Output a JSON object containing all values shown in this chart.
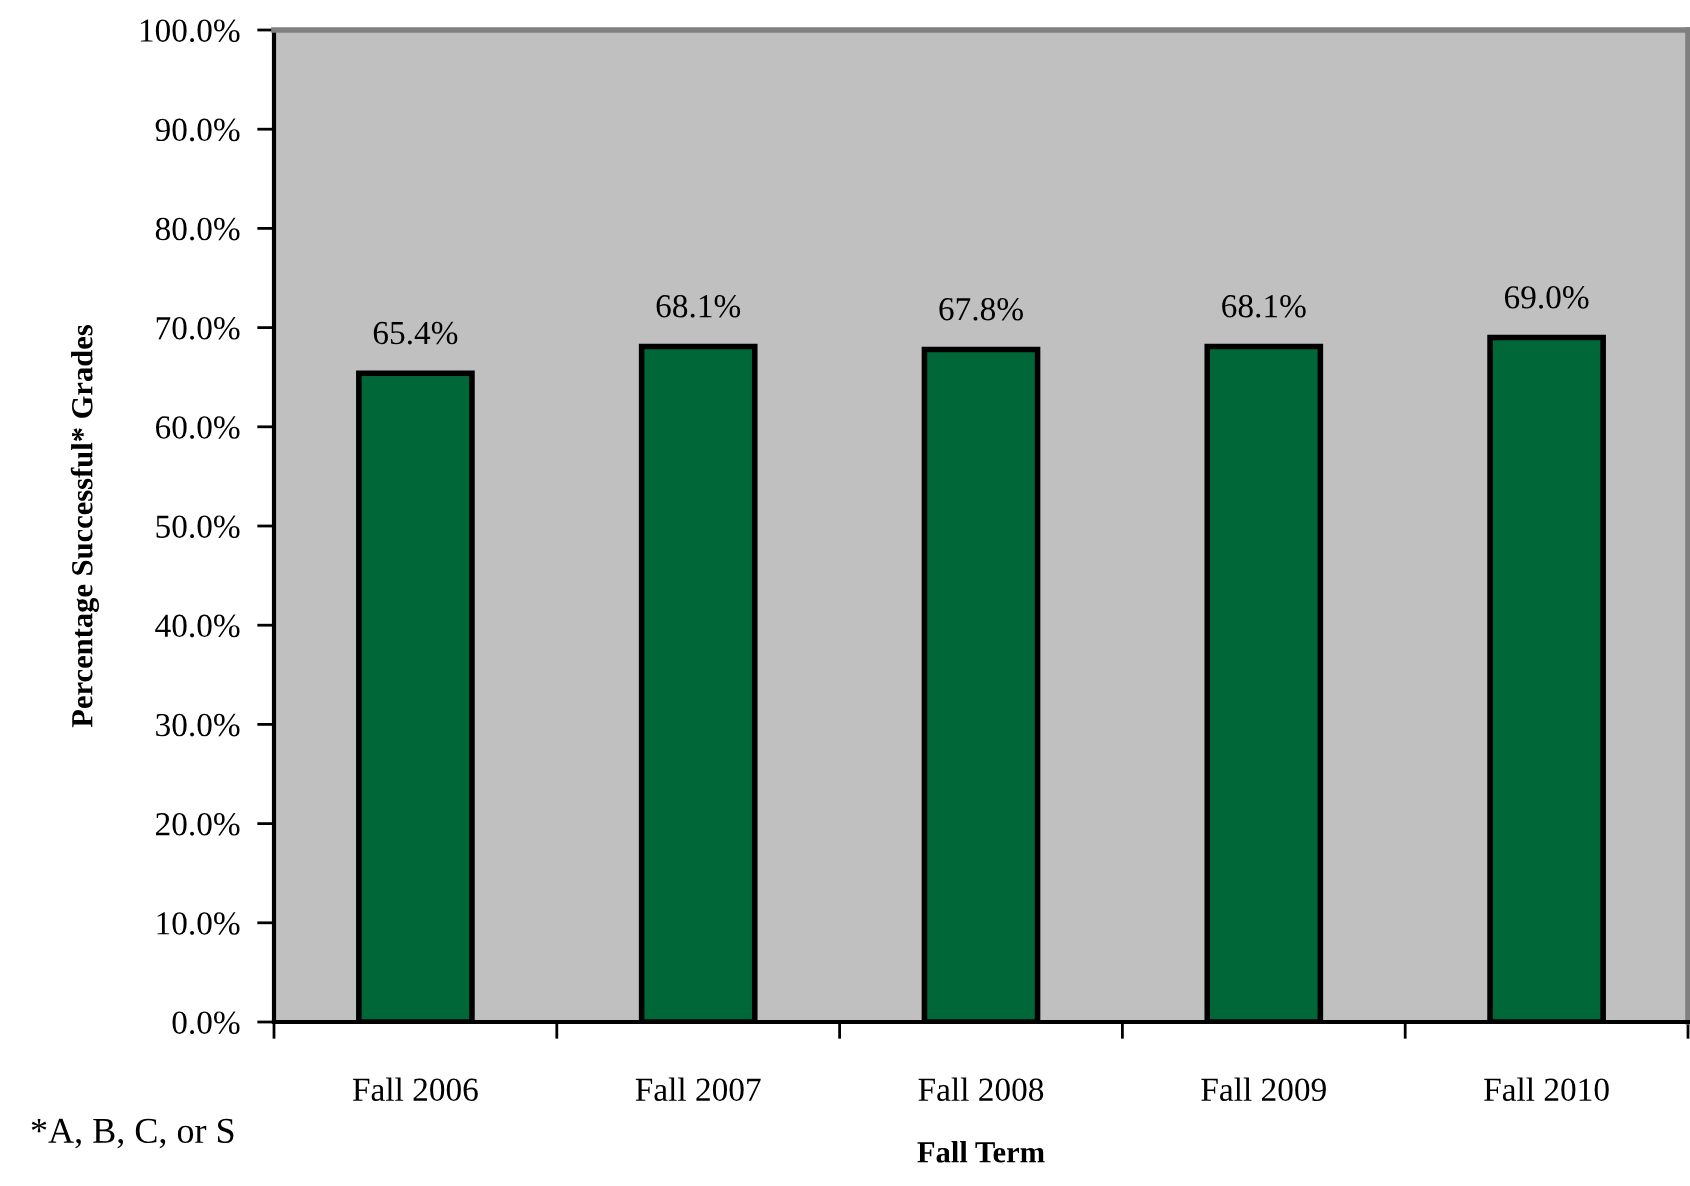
{
  "chart_data": {
    "type": "bar",
    "categories": [
      "Fall 2006",
      "Fall 2007",
      "Fall 2008",
      "Fall 2009",
      "Fall 2010"
    ],
    "values": [
      65.4,
      68.1,
      67.8,
      68.1,
      69.0
    ],
    "value_labels": [
      "65.4%",
      "68.1%",
      "67.8%",
      "68.1%",
      "69.0%"
    ],
    "color": "#006838",
    "xlabel": "Fall Term",
    "ylabel": "Percentage Successful* Grades",
    "ylim": [
      0,
      100
    ],
    "yticks": [
      {
        "value": 0,
        "label": "0.0%"
      },
      {
        "value": 10,
        "label": "10.0%"
      },
      {
        "value": 20,
        "label": "20.0%"
      },
      {
        "value": 30,
        "label": "30.0%"
      },
      {
        "value": 40,
        "label": "40.0%"
      },
      {
        "value": 50,
        "label": "50.0%"
      },
      {
        "value": 60,
        "label": "60.0%"
      },
      {
        "value": 70,
        "label": "70.0%"
      },
      {
        "value": 80,
        "label": "80.0%"
      },
      {
        "value": 90,
        "label": "90.0%"
      },
      {
        "value": 100,
        "label": "100.0%"
      }
    ],
    "grid": false,
    "legend": false,
    "annotations": [
      "*A, B, C, or S"
    ]
  }
}
